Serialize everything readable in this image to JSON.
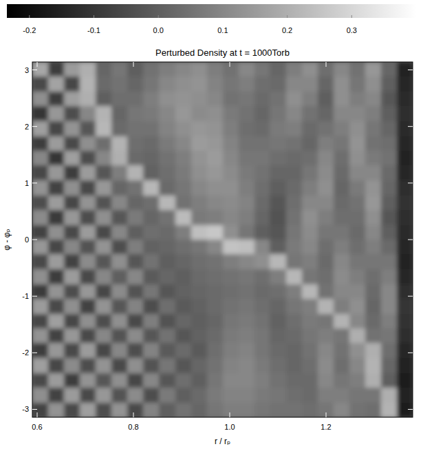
{
  "chart_data": {
    "type": "heatmap",
    "title": "Perturbed Density at t = 1000Torb",
    "x_label": "r / rₚ",
    "y_label": "φ - φₚ",
    "xlim": [
      0.59,
      1.38
    ],
    "ylim": [
      -3.14,
      3.14
    ],
    "xticks": [
      0.6,
      0.8,
      {
        "value": 1,
        "label": "1.0"
      },
      1.2
    ],
    "yticks": [
      -3,
      -2,
      -1,
      0,
      1,
      2,
      3
    ],
    "color_range": [
      -0.235,
      0.4
    ],
    "color_ticks": [
      -0.2,
      -0.1,
      {
        "value": 0,
        "label": "0.0"
      },
      0.1,
      0.2,
      0.3
    ],
    "x": [
      0.606,
      0.639,
      0.672,
      0.705,
      0.738,
      0.771,
      0.804,
      0.837,
      0.87,
      0.903,
      0.936,
      0.969,
      1.002,
      1.035,
      1.067,
      1.1,
      1.133,
      1.166,
      1.199,
      1.232,
      1.265,
      1.298,
      1.331,
      1.364
    ],
    "y": [
      3.01,
      2.75,
      2.49,
      2.23,
      1.96,
      1.7,
      1.44,
      1.18,
      0.92,
      0.65,
      0.39,
      0.13,
      -0.13,
      -0.39,
      -0.65,
      -0.92,
      -1.18,
      -1.44,
      -1.7,
      -1.96,
      -2.23,
      -2.49,
      -2.75,
      -3.01
    ],
    "cells": [
      [
        0.18,
        -0.08,
        0.15,
        0.2,
        0.02,
        0.06,
        0.0,
        0.05,
        0.08,
        0.1,
        0.12,
        0.08,
        0.05,
        0.1,
        0.06,
        0.02,
        0.08,
        0.12,
        0.04,
        0.1,
        0.05,
        0.14,
        0.02,
        -0.15
      ],
      [
        -0.05,
        0.17,
        -0.06,
        0.21,
        0.03,
        0.05,
        0.02,
        0.06,
        0.1,
        0.12,
        0.13,
        0.09,
        0.06,
        0.08,
        0.04,
        0.03,
        0.1,
        0.1,
        0.02,
        0.12,
        0.06,
        0.12,
        0.0,
        -0.14
      ],
      [
        0.12,
        -0.08,
        0.16,
        0.2,
        0.0,
        0.04,
        0.04,
        0.08,
        0.12,
        0.13,
        0.12,
        0.1,
        0.05,
        0.06,
        0.03,
        0.05,
        0.12,
        0.08,
        0.0,
        0.12,
        0.08,
        0.1,
        -0.02,
        -0.13
      ],
      [
        -0.1,
        0.14,
        -0.04,
        0.1,
        0.21,
        0.02,
        0.06,
        0.07,
        0.1,
        0.14,
        0.11,
        0.12,
        0.07,
        0.05,
        0.02,
        0.06,
        0.1,
        0.05,
        0.02,
        0.1,
        0.1,
        0.08,
        0.0,
        -0.12
      ],
      [
        0.16,
        -0.06,
        0.13,
        -0.02,
        0.22,
        0.03,
        0.05,
        0.05,
        0.09,
        0.12,
        0.14,
        0.13,
        0.08,
        0.04,
        0.03,
        0.07,
        0.08,
        0.03,
        0.05,
        0.08,
        0.12,
        0.06,
        0.02,
        -0.13
      ],
      [
        -0.08,
        0.15,
        -0.05,
        0.12,
        0.04,
        0.21,
        0.04,
        0.03,
        0.07,
        0.1,
        0.15,
        0.14,
        0.09,
        0.05,
        0.05,
        0.06,
        0.05,
        0.02,
        0.08,
        0.06,
        0.13,
        0.05,
        0.04,
        -0.14
      ],
      [
        0.1,
        -0.1,
        0.16,
        -0.04,
        0.1,
        0.2,
        0.03,
        0.02,
        0.05,
        0.08,
        0.13,
        0.15,
        0.1,
        0.06,
        0.06,
        0.04,
        0.03,
        0.04,
        0.1,
        0.04,
        0.12,
        0.07,
        0.05,
        -0.15
      ],
      [
        -0.06,
        0.14,
        -0.08,
        0.15,
        -0.02,
        0.08,
        0.21,
        0.01,
        0.04,
        0.07,
        0.12,
        0.14,
        0.11,
        0.07,
        0.05,
        0.02,
        0.02,
        0.06,
        0.11,
        0.03,
        0.1,
        0.1,
        0.03,
        -0.14
      ],
      [
        0.13,
        -0.07,
        0.12,
        -0.05,
        0.14,
        0.02,
        0.05,
        0.22,
        0.03,
        0.06,
        0.1,
        0.12,
        0.12,
        0.08,
        0.04,
        0.0,
        0.03,
        0.08,
        0.12,
        0.02,
        0.07,
        0.13,
        0.02,
        -0.12
      ],
      [
        -0.04,
        0.15,
        -0.06,
        0.13,
        -0.03,
        0.1,
        0.02,
        0.04,
        0.22,
        0.05,
        0.08,
        0.1,
        0.11,
        0.09,
        0.03,
        -0.02,
        0.04,
        0.1,
        0.1,
        0.03,
        0.05,
        0.14,
        0.0,
        -0.11
      ],
      [
        0.11,
        -0.09,
        0.14,
        -0.04,
        0.12,
        -0.02,
        0.07,
        0.02,
        0.05,
        0.23,
        0.07,
        0.08,
        0.1,
        0.08,
        0.02,
        -0.03,
        0.05,
        0.12,
        0.08,
        0.04,
        0.04,
        0.12,
        -0.02,
        -0.12
      ],
      [
        -0.07,
        0.12,
        -0.05,
        0.15,
        -0.05,
        0.1,
        0.0,
        0.04,
        0.03,
        0.08,
        0.24,
        0.26,
        0.12,
        0.06,
        0.0,
        -0.02,
        0.06,
        0.11,
        0.06,
        0.06,
        0.03,
        0.1,
        0.0,
        -0.13
      ],
      [
        0.14,
        -0.06,
        0.1,
        -0.03,
        0.13,
        -0.04,
        0.08,
        0.01,
        0.02,
        0.04,
        0.06,
        0.1,
        0.25,
        0.24,
        0.1,
        0.0,
        0.07,
        0.1,
        0.04,
        0.08,
        0.04,
        0.08,
        0.03,
        -0.14
      ],
      [
        -0.05,
        0.15,
        -0.07,
        0.11,
        -0.02,
        0.12,
        -0.02,
        0.05,
        0.0,
        0.02,
        0.04,
        0.05,
        0.08,
        0.1,
        0.12,
        0.22,
        0.06,
        0.08,
        0.03,
        0.1,
        0.06,
        0.06,
        0.06,
        -0.15
      ],
      [
        0.12,
        -0.08,
        0.15,
        -0.05,
        0.1,
        0.0,
        0.1,
        -0.01,
        0.02,
        0.0,
        0.03,
        0.04,
        0.05,
        0.06,
        0.04,
        0.08,
        0.22,
        0.06,
        0.04,
        0.11,
        0.08,
        0.04,
        0.08,
        -0.14
      ],
      [
        -0.09,
        0.13,
        -0.04,
        0.14,
        -0.06,
        0.11,
        -0.03,
        0.06,
        -0.02,
        0.01,
        0.02,
        0.03,
        0.04,
        0.05,
        0.03,
        0.04,
        0.08,
        0.22,
        0.05,
        0.1,
        0.1,
        0.03,
        0.1,
        -0.12
      ],
      [
        0.15,
        -0.05,
        0.12,
        -0.07,
        0.13,
        -0.02,
        0.09,
        -0.04,
        0.04,
        -0.01,
        0.01,
        0.03,
        0.05,
        0.06,
        0.04,
        0.02,
        0.06,
        0.08,
        0.21,
        0.08,
        0.12,
        0.02,
        0.1,
        -0.1
      ],
      [
        -0.06,
        0.16,
        -0.06,
        0.12,
        -0.04,
        0.12,
        -0.05,
        0.08,
        -0.03,
        0.02,
        0.0,
        0.02,
        0.06,
        0.07,
        0.05,
        0.01,
        0.04,
        0.07,
        0.06,
        0.21,
        0.1,
        0.03,
        0.08,
        -0.11
      ],
      [
        0.13,
        -0.07,
        0.14,
        -0.05,
        0.1,
        -0.03,
        0.11,
        -0.02,
        0.05,
        -0.02,
        0.01,
        0.03,
        0.07,
        0.08,
        0.06,
        0.02,
        0.03,
        0.06,
        0.08,
        0.06,
        0.2,
        0.05,
        0.06,
        -0.12
      ],
      [
        -0.08,
        0.14,
        -0.05,
        0.15,
        -0.06,
        0.1,
        -0.04,
        0.09,
        -0.01,
        0.03,
        -0.01,
        0.04,
        0.08,
        0.09,
        0.06,
        0.03,
        0.02,
        0.05,
        0.1,
        0.05,
        0.12,
        0.2,
        0.04,
        -0.14
      ],
      [
        0.16,
        -0.06,
        0.11,
        -0.04,
        0.13,
        -0.05,
        0.12,
        -0.03,
        0.06,
        -0.02,
        0.02,
        0.05,
        0.09,
        0.1,
        0.07,
        0.04,
        0.02,
        0.04,
        0.11,
        0.04,
        0.1,
        0.21,
        0.02,
        -0.15
      ],
      [
        -0.05,
        0.15,
        -0.08,
        0.13,
        -0.02,
        0.12,
        -0.06,
        0.1,
        -0.02,
        0.04,
        0.0,
        0.06,
        0.1,
        0.1,
        0.08,
        0.05,
        0.03,
        0.03,
        0.1,
        0.06,
        0.08,
        0.2,
        0.0,
        -0.16
      ],
      [
        0.12,
        -0.07,
        0.15,
        -0.05,
        0.14,
        -0.03,
        0.11,
        -0.04,
        0.07,
        0.0,
        0.03,
        0.07,
        0.09,
        0.09,
        0.07,
        0.06,
        0.04,
        0.03,
        0.08,
        0.08,
        0.06,
        0.06,
        0.2,
        -0.15
      ],
      [
        -0.07,
        0.13,
        -0.05,
        0.16,
        -0.04,
        0.13,
        -0.05,
        0.09,
        0.0,
        0.05,
        0.02,
        0.06,
        0.08,
        0.08,
        0.06,
        0.05,
        0.05,
        0.04,
        0.06,
        0.1,
        0.05,
        0.04,
        0.21,
        -0.16
      ]
    ]
  }
}
